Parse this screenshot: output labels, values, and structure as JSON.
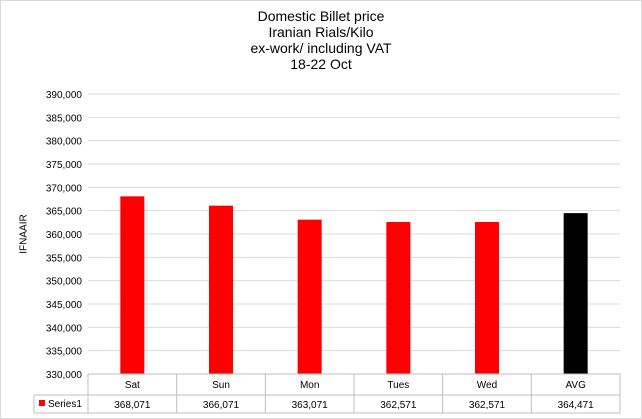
{
  "chart_data": {
    "type": "bar",
    "title": [
      "Domestic Billet price",
      "Iranian Rials/Kilo",
      "ex-work/ including VAT",
      "18-22 Oct"
    ],
    "xlabel": "",
    "ylabel": "IFNAAIR",
    "ylim": [
      330000,
      390000
    ],
    "ytick_step": 5000,
    "categories": [
      "Sat",
      "Sun",
      "Mon",
      "Tues",
      "Wed",
      "AVG"
    ],
    "series": [
      {
        "name": "Series1",
        "values": [
          368071,
          366071,
          363071,
          362571,
          362571,
          364471
        ],
        "value_labels": [
          "368,071",
          "366,071",
          "363,071",
          "362,571",
          "362,571",
          "364,471"
        ]
      }
    ],
    "bar_colors": [
      "#ff0000",
      "#ff0000",
      "#ff0000",
      "#ff0000",
      "#ff0000",
      "#000000"
    ],
    "grid": true,
    "data_table": true,
    "legend": "data-table-key"
  }
}
